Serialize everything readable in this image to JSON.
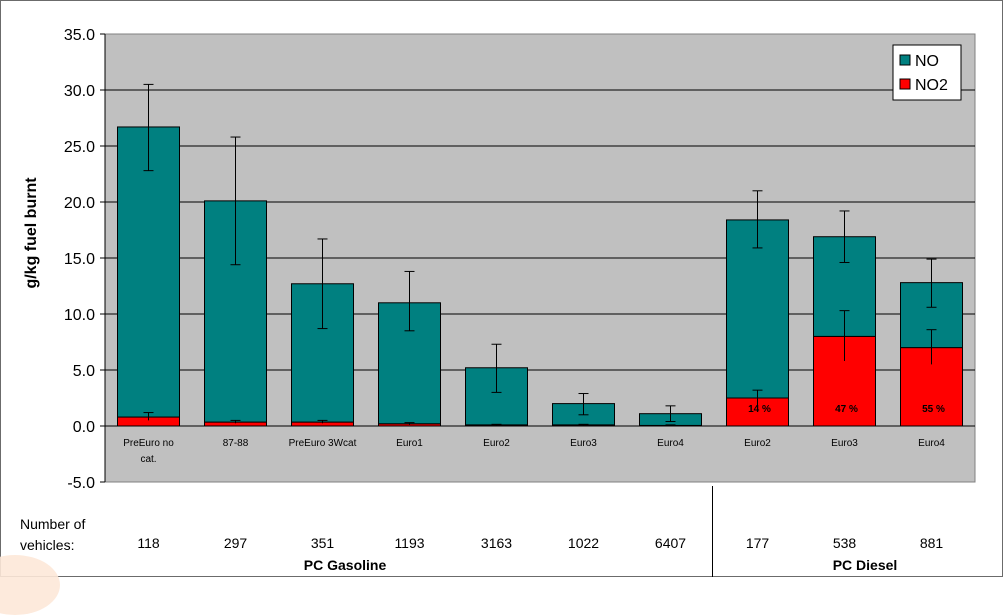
{
  "chart_data": {
    "type": "bar",
    "stacked": true,
    "categories": [
      "PreEuro no cat.",
      "87-88",
      "PreEuro 3Wcat",
      "Euro1",
      "Euro2",
      "Euro3",
      "Euro4",
      "Euro2",
      "Euro3",
      "Euro4"
    ],
    "series": [
      {
        "name": "NO2",
        "color": "#ff0000",
        "values": [
          0.8,
          0.35,
          0.35,
          0.2,
          0.1,
          0.1,
          0.05,
          2.5,
          8.0,
          7.0
        ]
      },
      {
        "name": "NO",
        "color": "#008080",
        "values": [
          25.9,
          19.75,
          12.35,
          10.8,
          5.1,
          1.9,
          1.05,
          15.9,
          8.9,
          5.8
        ]
      }
    ],
    "totals": [
      26.7,
      20.1,
      12.7,
      11.0,
      5.2,
      2.0,
      1.1,
      18.4,
      16.9,
      12.8
    ],
    "error_bars_total": [
      [
        22.8,
        30.5
      ],
      [
        14.4,
        25.8
      ],
      [
        8.7,
        16.7
      ],
      [
        8.5,
        13.8
      ],
      [
        3.0,
        7.3
      ],
      [
        1.0,
        2.9
      ],
      [
        0.4,
        1.8
      ],
      [
        15.9,
        21.0
      ],
      [
        14.6,
        19.2
      ],
      [
        10.6,
        14.9
      ]
    ],
    "error_bars_no2": [
      [
        0.5,
        1.2
      ],
      [
        0.25,
        0.5
      ],
      [
        0.25,
        0.5
      ],
      [
        0.1,
        0.3
      ],
      [
        0.05,
        0.15
      ],
      [
        0.05,
        0.15
      ],
      [
        0.0,
        0.1
      ],
      [
        1.8,
        3.2
      ],
      [
        5.8,
        10.3
      ],
      [
        5.5,
        8.6
      ]
    ],
    "bar_labels": [
      "",
      "",
      "",
      "",
      "",
      "",
      "",
      "14 %",
      "47 %",
      "55 %"
    ],
    "ylabel": "g/kg fuel burnt",
    "xlabel": "",
    "ylim": [
      -5,
      35
    ],
    "yticks": [
      "-5.0",
      "0.0",
      "5.0",
      "10.0",
      "15.0",
      "20.0",
      "25.0",
      "30.0",
      "35.0"
    ],
    "grid": true,
    "legend": {
      "position": "top-right",
      "entries": [
        "NO",
        "NO2"
      ]
    },
    "plot_background": "#c0c0c0"
  },
  "table": {
    "row_label": "Number of vehicles:",
    "counts": [
      "118",
      "297",
      "351",
      "1193",
      "3163",
      "1022",
      "6407",
      "177",
      "538",
      "881"
    ],
    "groups": [
      "PC Gasoline",
      "PC Diesel"
    ]
  }
}
